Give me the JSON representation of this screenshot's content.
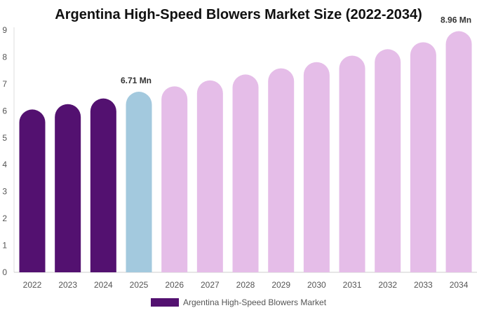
{
  "chart_data": {
    "type": "bar",
    "title": "Argentina High-Speed Blowers Market Size (2022-2034)",
    "categories": [
      "2022",
      "2023",
      "2024",
      "2025",
      "2026",
      "2027",
      "2028",
      "2029",
      "2030",
      "2031",
      "2032",
      "2033",
      "2034"
    ],
    "series": [
      {
        "name": "Argentina High-Speed Blowers Market",
        "values": [
          6.05,
          6.25,
          6.46,
          6.71,
          6.91,
          7.13,
          7.35,
          7.58,
          7.81,
          8.05,
          8.29,
          8.55,
          8.96
        ]
      }
    ],
    "yticks": [
      "0",
      "1",
      "2",
      "3",
      "4",
      "5",
      "6",
      "7",
      "8",
      "9"
    ],
    "ylim": [
      0,
      9
    ],
    "data_labels": [
      {
        "category": "2025",
        "text": "6.71 Mn"
      },
      {
        "category": "2034",
        "text": "8.96 Mn"
      }
    ],
    "bar_colors": {
      "historical": "#531170",
      "current": "#a3c9de",
      "forecast": "#e5bde8"
    },
    "historical_years": [
      "2022",
      "2023",
      "2024"
    ],
    "current_year": "2025",
    "legend_position": "bottom",
    "grid": false
  },
  "legend": {
    "label": "Argentina High-Speed Blowers Market",
    "color": "#531170"
  }
}
